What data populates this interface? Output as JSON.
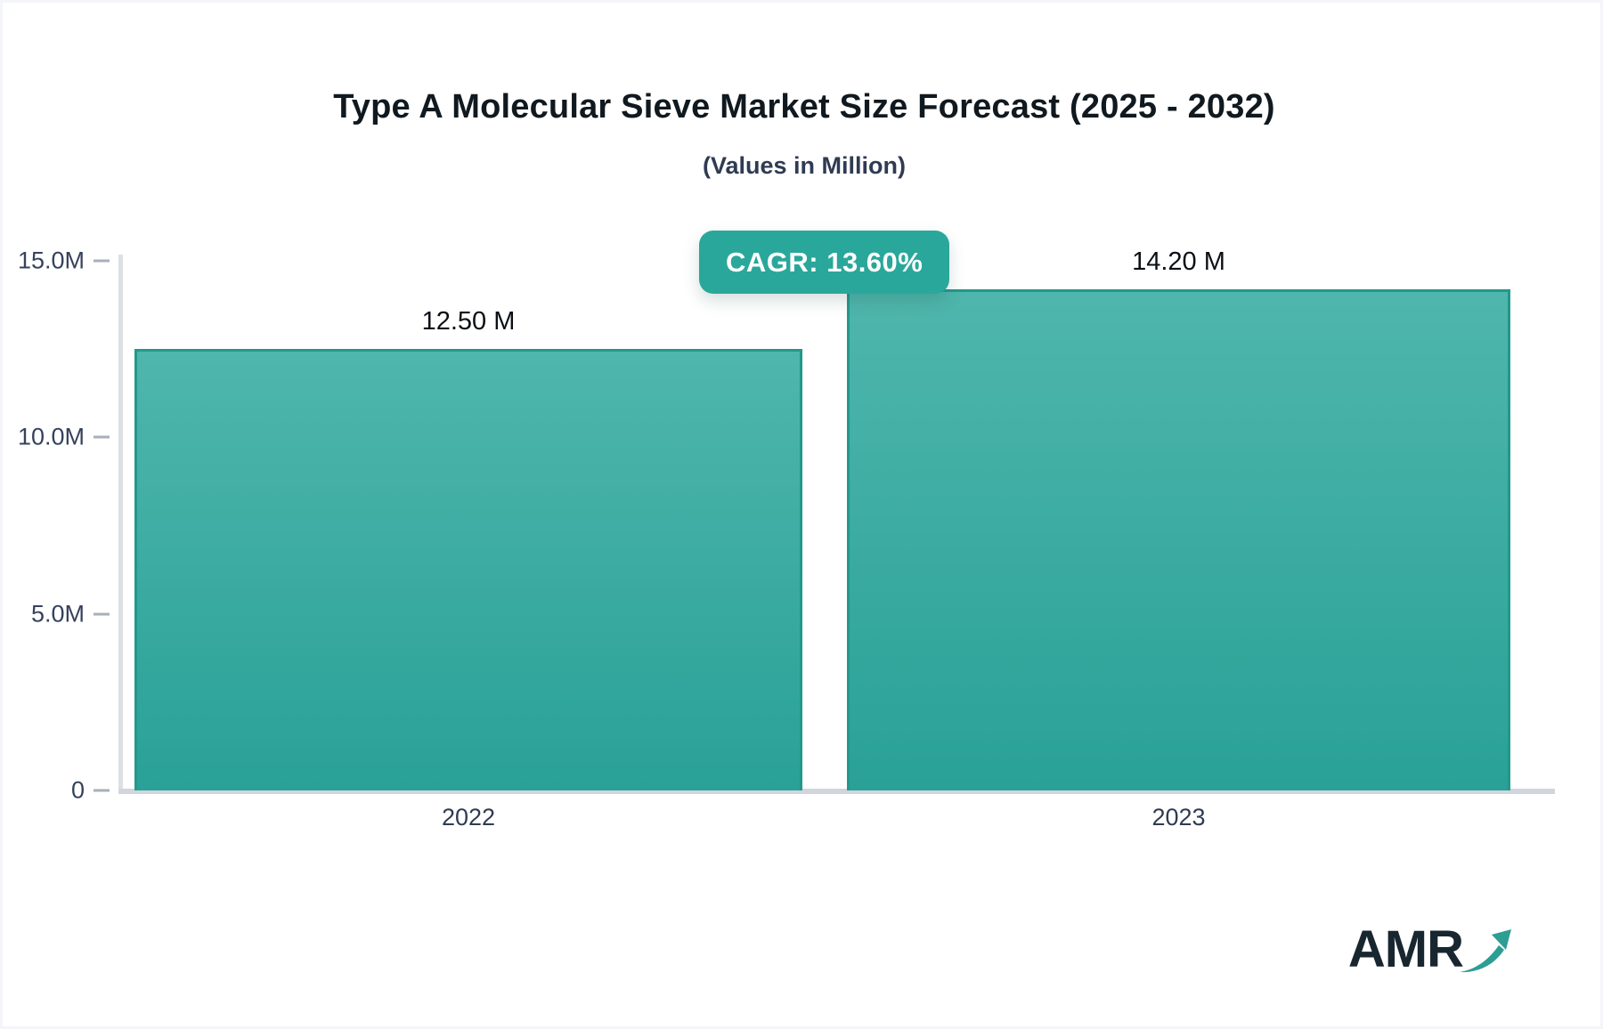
{
  "header": {
    "title": "Type A Molecular Sieve Market Size Forecast (2025 - 2032)",
    "subtitle": "(Values in Million)"
  },
  "badge": {
    "label": "CAGR: 13.60%",
    "background": "#2aa79b",
    "text_color": "#ffffff"
  },
  "chart_data": {
    "type": "bar",
    "title": "Type A Molecular Sieve Market Size Forecast (2025 - 2032)",
    "subtitle": "(Values in Million)",
    "unit": "Million",
    "categories": [
      "2022",
      "2023"
    ],
    "values": [
      12.5,
      14.2
    ],
    "value_labels": [
      "12.50 M",
      "14.20 M"
    ],
    "annotations": [
      "CAGR: 13.60%"
    ],
    "ylim": [
      0,
      15
    ],
    "yticks": [
      {
        "value": 0,
        "label": "0"
      },
      {
        "value": 5,
        "label": "5.0M"
      },
      {
        "value": 10,
        "label": "10.0M"
      },
      {
        "value": 15,
        "label": "15.0M"
      }
    ],
    "grid": false,
    "legend": false,
    "bar_color_top": "#4fb6ac",
    "bar_color_bottom": "#29a197",
    "bar_border_color": "#23988c",
    "axis_line_color": "#d2d5dc",
    "tick_color": "#a9afba",
    "label_color": "#2f3b52"
  },
  "logo": {
    "text": "AMR",
    "arrow_icon": "trend-up-arrow",
    "text_color": "#18262f",
    "arrow_color": "#2d9e94"
  }
}
